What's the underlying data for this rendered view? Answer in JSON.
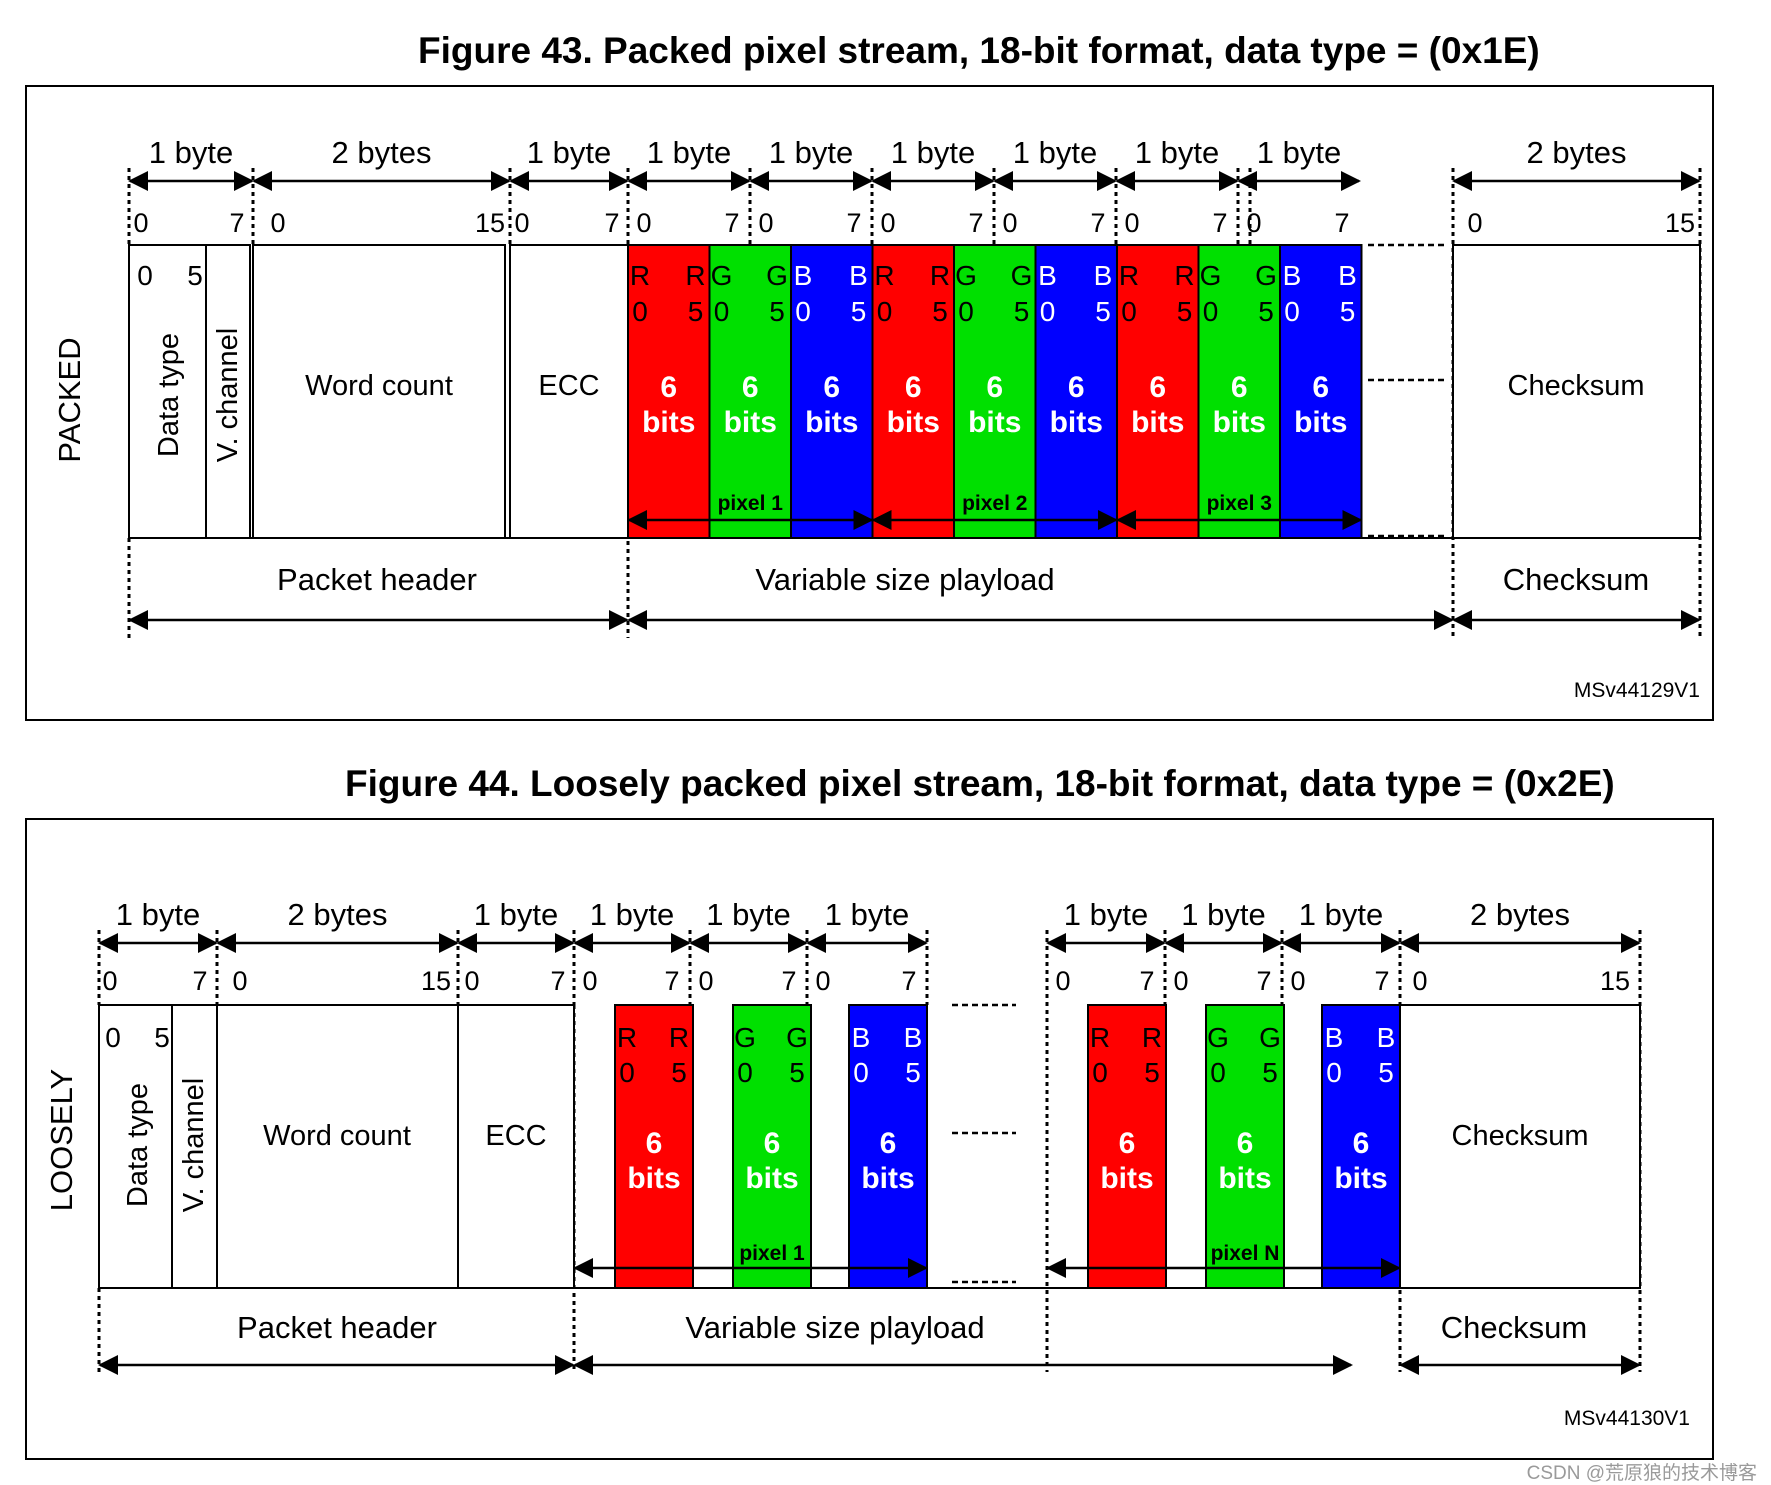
{
  "figures": [
    {
      "title": "Figure 43. Packed pixel stream, 18-bit format, data type = (0x1E)",
      "side_label": "PACKED",
      "header_bytes": [
        "1 byte",
        "2 bytes",
        "1 byte"
      ],
      "bit_ranges": {
        "dt": [
          "0",
          "7"
        ],
        "wc": [
          "0",
          "15"
        ],
        "ecc": [
          "0",
          "7"
        ],
        "byte": [
          "0",
          "7"
        ],
        "cs": [
          "0",
          "15"
        ]
      },
      "data_type_label": "Data type",
      "data_type_bits": [
        "0",
        "5"
      ],
      "vchannel_label": "V. channel",
      "word_count_label": "Word count",
      "ecc_label": "ECC",
      "pixel_byte_labels": [
        "1 byte",
        "1 byte",
        "1 byte",
        "1 byte",
        "1 byte",
        "1 byte"
      ],
      "payload_cells": [
        {
          "letter": "R",
          "lo": "0",
          "hi": "5",
          "size": "6",
          "unit": "bits"
        },
        {
          "letter": "G",
          "lo": "0",
          "hi": "5",
          "size": "6",
          "unit": "bits"
        },
        {
          "letter": "B",
          "lo": "0",
          "hi": "5",
          "size": "6",
          "unit": "bits"
        },
        {
          "letter": "R",
          "lo": "0",
          "hi": "5",
          "size": "6",
          "unit": "bits"
        },
        {
          "letter": "G",
          "lo": "0",
          "hi": "5",
          "size": "6",
          "unit": "bits"
        },
        {
          "letter": "B",
          "lo": "0",
          "hi": "5",
          "size": "6",
          "unit": "bits"
        },
        {
          "letter": "R",
          "lo": "0",
          "hi": "5",
          "size": "6",
          "unit": "bits"
        },
        {
          "letter": "G",
          "lo": "0",
          "hi": "5",
          "size": "6",
          "unit": "bits"
        },
        {
          "letter": "B",
          "lo": "0",
          "hi": "5",
          "size": "6",
          "unit": "bits"
        }
      ],
      "pixel_labels": [
        "pixel 1",
        "pixel 2",
        "pixel 3"
      ],
      "checksum_bytes": "2 bytes",
      "checksum_label": "Checksum",
      "bottom_labels": [
        "Packet header",
        "Variable size playload",
        "Checksum"
      ],
      "code": "MSv44129V1"
    },
    {
      "title": "Figure 44. Loosely packed pixel stream, 18-bit format, data type = (0x2E)",
      "side_label": "LOOSELY",
      "header_bytes": [
        "1 byte",
        "2 bytes",
        "1 byte"
      ],
      "bit_ranges": {
        "dt": [
          "0",
          "7"
        ],
        "wc": [
          "0",
          "15"
        ],
        "ecc": [
          "0",
          "7"
        ],
        "byte": [
          "0",
          "7"
        ],
        "cs": [
          "0",
          "15"
        ]
      },
      "data_type_label": "Data type",
      "data_type_bits": [
        "0",
        "5"
      ],
      "vchannel_label": "V. channel",
      "word_count_label": "Word count",
      "ecc_label": "ECC",
      "pixel_byte_labels": [
        "1 byte",
        "1 byte",
        "1 byte",
        "1 byte",
        "1 byte",
        "1 byte"
      ],
      "payload_cells": [
        {
          "letter": "R",
          "lo": "0",
          "hi": "5",
          "size": "6",
          "unit": "bits"
        },
        {
          "letter": "G",
          "lo": "0",
          "hi": "5",
          "size": "6",
          "unit": "bits"
        },
        {
          "letter": "B",
          "lo": "0",
          "hi": "5",
          "size": "6",
          "unit": "bits"
        },
        {
          "letter": "R",
          "lo": "0",
          "hi": "5",
          "size": "6",
          "unit": "bits"
        },
        {
          "letter": "G",
          "lo": "0",
          "hi": "5",
          "size": "6",
          "unit": "bits"
        },
        {
          "letter": "B",
          "lo": "0",
          "hi": "5",
          "size": "6",
          "unit": "bits"
        }
      ],
      "pixel_labels": [
        "pixel 1",
        "pixel N"
      ],
      "checksum_bytes": "2 bytes",
      "checksum_label": "Checksum",
      "bottom_labels": [
        "Packet header",
        "Variable size playload",
        "Checksum"
      ],
      "code": "MSv44130V1"
    }
  ],
  "watermark": "CSDN @荒原狼的技术博客",
  "colors": {
    "red": "#ff0000",
    "green": "#00e000",
    "blue": "#0000ff"
  }
}
